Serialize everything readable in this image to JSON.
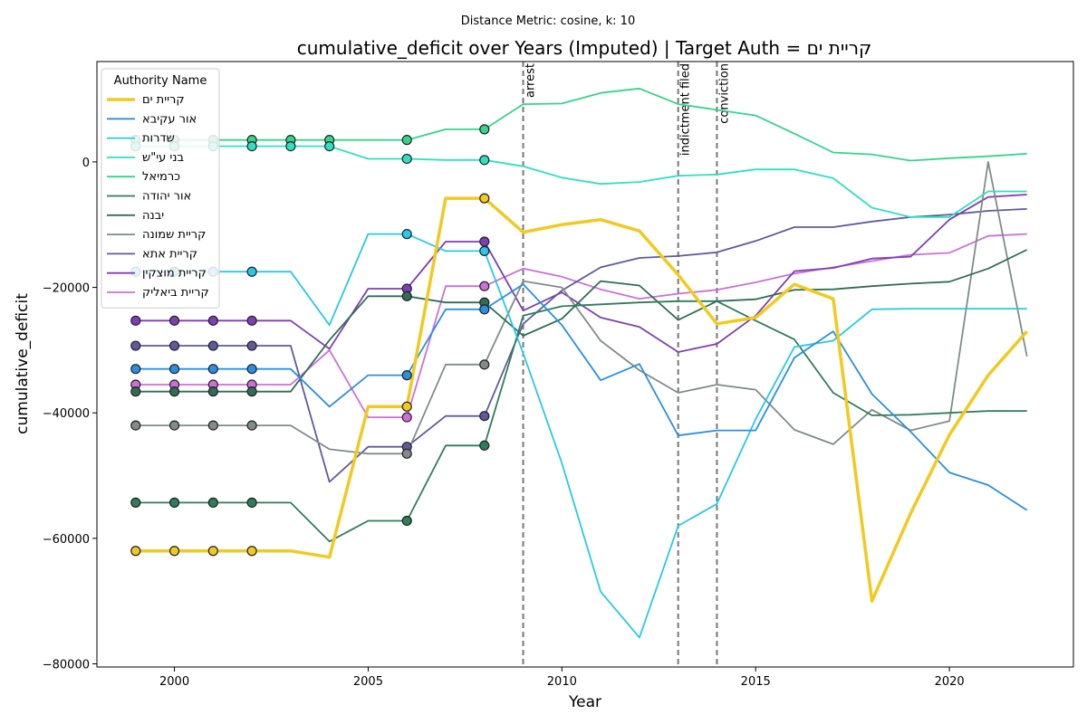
{
  "suptitle": "Distance Metric: cosine, k: 10",
  "chart_data": {
    "type": "line",
    "title": "cumulative_deficit over Years (Imputed) | Target Auth = קריית ים",
    "xlabel": "Year",
    "ylabel": "cumulative_deficit",
    "xlim": [
      1998,
      2023.2
    ],
    "ylim": [
      -80500,
      16000
    ],
    "x_ticks": [
      2000,
      2005,
      2010,
      2015,
      2020
    ],
    "y_ticks": [
      -80000,
      -60000,
      -40000,
      -20000,
      0
    ],
    "y_tick_labels": [
      "−80000",
      "−60000",
      "−40000",
      "−20000",
      "0"
    ],
    "grid": false,
    "legend_position": "top-left",
    "legend_title": "Authority Name",
    "x": [
      1999,
      2000,
      2001,
      2002,
      2003,
      2004,
      2005,
      2006,
      2007,
      2008,
      2009,
      2010,
      2011,
      2012,
      2013,
      2014,
      2015,
      2016,
      2017,
      2018,
      2019,
      2020,
      2021,
      2022
    ],
    "events": [
      {
        "x": 2009,
        "label": "arrest"
      },
      {
        "x": 2013,
        "label": "indictment filed"
      },
      {
        "x": 2014,
        "label": "conviction"
      }
    ],
    "series": [
      {
        "name": "קריית ים",
        "color": "#f2c91f",
        "target": true,
        "values": [
          -62000,
          -62000,
          -62000,
          -62000,
          -62000,
          -63000,
          -39000,
          -39000,
          -5800,
          -5800,
          -11200,
          -10000,
          -9200,
          -11000,
          -18000,
          -25800,
          -24800,
          -19500,
          -21800,
          -70000,
          -56000,
          -43500,
          -34000,
          -27000
        ],
        "imputed": [
          1999,
          2000,
          2001,
          2002,
          2006,
          2008
        ]
      },
      {
        "name": "אור עקיבא",
        "color": "#2a8fe0",
        "values": [
          -33000,
          -33000,
          -33000,
          -33000,
          -33000,
          -39000,
          -34000,
          -34000,
          -23500,
          -23500,
          -19500,
          -26000,
          -34800,
          -32200,
          -43600,
          -42800,
          -42800,
          -31200,
          -27000,
          -37000,
          -43000,
          -49500,
          -51500,
          -55500
        ],
        "imputed": [
          1999,
          2000,
          2001,
          2002,
          2006,
          2008
        ]
      },
      {
        "name": "שדרות",
        "color": "#28c8ea",
        "values": [
          -17500,
          -17500,
          -17500,
          -17500,
          -17500,
          -26000,
          -11500,
          -11500,
          -14200,
          -14200,
          -30500,
          -48000,
          -68500,
          -75800,
          -58000,
          -54500,
          -41000,
          -29500,
          -28500,
          -23500,
          -23400,
          -23400,
          -23400,
          -23400
        ],
        "imputed": [
          1999,
          2000,
          2001,
          2002,
          2006,
          2008
        ]
      },
      {
        "name": "בני עי\"ש",
        "color": "#2fe0c0",
        "values": [
          2500,
          2500,
          2500,
          2500,
          2500,
          2500,
          500,
          500,
          300,
          300,
          -700,
          -2500,
          -3500,
          -3200,
          -2200,
          -2000,
          -1200,
          -1200,
          -2600,
          -7300,
          -8800,
          -8800,
          -4700,
          -4700
        ],
        "imputed": [
          1999,
          2000,
          2001,
          2002,
          2003,
          2004,
          2006,
          2008
        ]
      },
      {
        "name": "כרמיאל",
        "color": "#35d48a",
        "values": [
          3500,
          3500,
          3500,
          3500,
          3500,
          3500,
          3500,
          3500,
          5200,
          5200,
          9200,
          9300,
          11000,
          11700,
          9200,
          8300,
          7400,
          4500,
          1500,
          1200,
          200,
          600,
          900,
          1300
        ],
        "imputed": [
          1999,
          2000,
          2001,
          2002,
          2003,
          2004,
          2006,
          2008
        ]
      },
      {
        "name": "אור יהודה",
        "color": "#2e7d5b",
        "values": [
          -54300,
          -54300,
          -54300,
          -54300,
          -54300,
          -60500,
          -57200,
          -57200,
          -45200,
          -45200,
          -24500,
          -23000,
          -22700,
          -22400,
          -22200,
          -22200,
          -25300,
          -28300,
          -36800,
          -40400,
          -40300,
          -40000,
          -39700,
          -39700
        ],
        "imputed": [
          1999,
          2000,
          2001,
          2002,
          2006,
          2008
        ]
      },
      {
        "name": "יבנה",
        "color": "#2f6e55",
        "values": [
          -36600,
          -36600,
          -36600,
          -36600,
          -36600,
          -28400,
          -21400,
          -21400,
          -22400,
          -22400,
          -27700,
          -25000,
          -19000,
          -19700,
          -25200,
          -22200,
          -21900,
          -20400,
          -20300,
          -19800,
          -19400,
          -19100,
          -17000,
          -14000
        ],
        "imputed": [
          1999,
          2000,
          2001,
          2002,
          2006,
          2008
        ]
      },
      {
        "name": "קריית שמונה",
        "color": "#7f8c87",
        "values": [
          -42000,
          -42000,
          -42000,
          -42000,
          -42000,
          -45800,
          -46500,
          -46500,
          -32300,
          -32300,
          -19000,
          -20000,
          -28500,
          -33200,
          -36800,
          -35500,
          -36300,
          -42700,
          -45000,
          -39500,
          -42800,
          -41300,
          0,
          -31000
        ],
        "imputed": [
          1999,
          2000,
          2001,
          2002,
          2006,
          2008
        ]
      },
      {
        "name": "קריית אתא",
        "color": "#5e5a9c",
        "values": [
          -29300,
          -29300,
          -29300,
          -29300,
          -29300,
          -51000,
          -45400,
          -45400,
          -40500,
          -40500,
          -25800,
          -20500,
          -16800,
          -15300,
          -15000,
          -14400,
          -12600,
          -10400,
          -10400,
          -9500,
          -8800,
          -8400,
          -7800,
          -7500
        ],
        "imputed": [
          1999,
          2000,
          2001,
          2002,
          2006,
          2008
        ]
      },
      {
        "name": "קריית מוצקין",
        "color": "#7e3fb5",
        "values": [
          -25300,
          -25300,
          -25300,
          -25300,
          -25300,
          -29800,
          -20200,
          -20200,
          -12700,
          -12700,
          -23700,
          -20800,
          -24800,
          -26300,
          -30300,
          -29000,
          -24500,
          -17400,
          -16900,
          -15400,
          -15100,
          -9200,
          -5600,
          -5200
        ],
        "imputed": [
          1999,
          2000,
          2001,
          2002,
          2006,
          2008
        ]
      },
      {
        "name": "קריית ביאליק",
        "color": "#cd6fd8",
        "values": [
          -35500,
          -35500,
          -35500,
          -35500,
          -35500,
          -30000,
          -40700,
          -40700,
          -19800,
          -19800,
          -17000,
          -18300,
          -20300,
          -21800,
          -21000,
          -20400,
          -19200,
          -17800,
          -16800,
          -15800,
          -14800,
          -14500,
          -11800,
          -11500
        ],
        "imputed": [
          1999,
          2000,
          2001,
          2002,
          2006,
          2008
        ]
      }
    ]
  }
}
